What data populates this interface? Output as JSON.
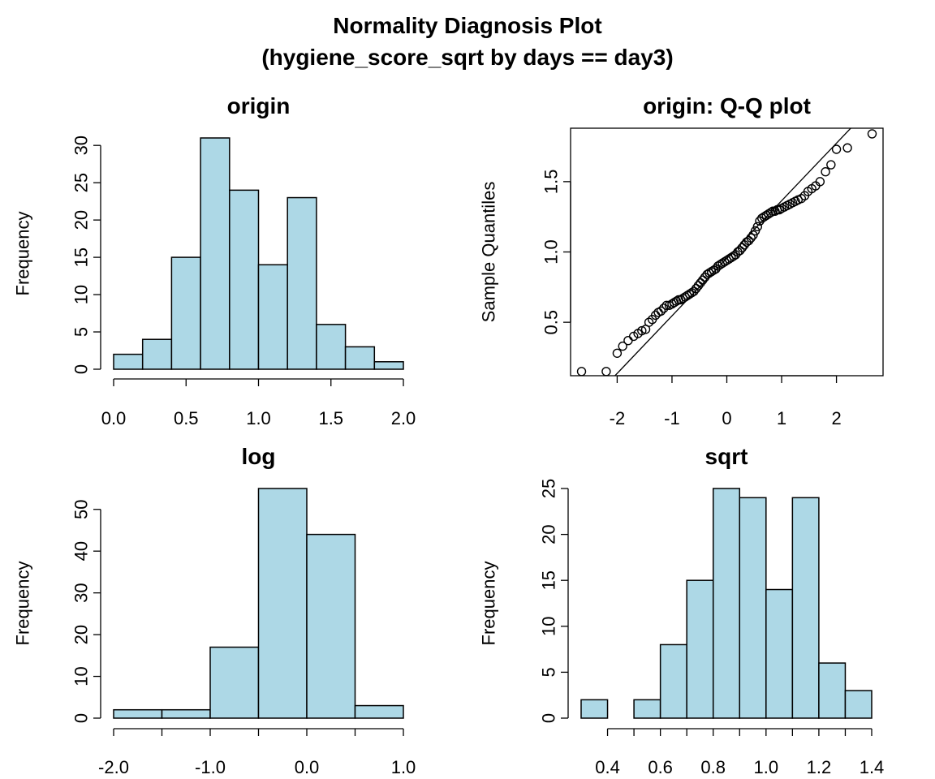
{
  "title": {
    "line1": "Normality Diagnosis Plot",
    "line2": "(hygiene_score_sqrt by days == day3)"
  },
  "chart_data": [
    {
      "type": "bar",
      "title": "origin",
      "ylabel": "Frequency",
      "xlabel": "",
      "bin_edges": [
        0.0,
        0.2,
        0.4,
        0.6,
        0.8,
        1.0,
        1.2,
        1.4,
        1.6,
        1.8,
        2.0
      ],
      "values": [
        2,
        4,
        15,
        31,
        24,
        14,
        23,
        6,
        3,
        1
      ],
      "xlim": [
        0,
        2
      ],
      "ylim": [
        0,
        31
      ],
      "xticks": [
        0,
        0.5,
        1,
        1.5,
        2
      ],
      "xtick_labels": [
        "0.0",
        "0.5",
        "1.0",
        "1.5",
        "2.0"
      ],
      "yticks": [
        0,
        5,
        10,
        15,
        20,
        25,
        30
      ],
      "ytick_labels": [
        "0",
        "5",
        "10",
        "15",
        "20",
        "25",
        "30"
      ],
      "bar_color": "#add8e6"
    },
    {
      "type": "scatter",
      "title": "origin: Q-Q plot",
      "ylabel": "Sample Quantiles",
      "xlabel": "",
      "xlim": [
        -2.85,
        2.85
      ],
      "ylim": [
        0.12,
        1.88
      ],
      "xticks": [
        -2,
        -1,
        0,
        1,
        2
      ],
      "xtick_labels": [
        "-2",
        "-1",
        "0",
        "1",
        "2"
      ],
      "yticks": [
        0.5,
        1.0,
        1.5
      ],
      "ytick_labels": [
        "0.5",
        "1.0",
        "1.5"
      ],
      "reference_line": {
        "x": [
          -2.04,
          2.26
        ],
        "y": [
          0.12,
          1.88
        ]
      },
      "points": {
        "x": [
          -2.65,
          -2.2,
          -2.0,
          -1.9,
          -1.8,
          -1.7,
          -1.62,
          -1.55,
          -1.48,
          -1.42,
          -1.36,
          -1.3,
          -1.25,
          -1.2,
          -1.15,
          -1.1,
          -1.05,
          -1.0,
          -0.96,
          -0.92,
          -0.88,
          -0.84,
          -0.8,
          -0.76,
          -0.72,
          -0.68,
          -0.64,
          -0.6,
          -0.56,
          -0.52,
          -0.48,
          -0.44,
          -0.4,
          -0.36,
          -0.32,
          -0.28,
          -0.24,
          -0.2,
          -0.16,
          -0.12,
          -0.08,
          -0.04,
          0.0,
          0.04,
          0.08,
          0.12,
          0.16,
          0.2,
          0.24,
          0.28,
          0.32,
          0.36,
          0.4,
          0.44,
          0.48,
          0.52,
          0.56,
          0.6,
          0.64,
          0.68,
          0.72,
          0.76,
          0.8,
          0.84,
          0.88,
          0.92,
          0.96,
          1.0,
          1.05,
          1.1,
          1.15,
          1.2,
          1.25,
          1.3,
          1.36,
          1.42,
          1.48,
          1.55,
          1.62,
          1.7,
          1.8,
          1.9,
          2.0,
          2.2,
          2.65
        ],
        "y": [
          0.15,
          0.15,
          0.28,
          0.33,
          0.37,
          0.4,
          0.42,
          0.44,
          0.45,
          0.5,
          0.52,
          0.55,
          0.57,
          0.58,
          0.6,
          0.62,
          0.62,
          0.63,
          0.64,
          0.65,
          0.66,
          0.66,
          0.67,
          0.68,
          0.69,
          0.7,
          0.71,
          0.72,
          0.74,
          0.76,
          0.78,
          0.8,
          0.82,
          0.84,
          0.85,
          0.86,
          0.87,
          0.88,
          0.9,
          0.91,
          0.92,
          0.93,
          0.94,
          0.95,
          0.96,
          0.97,
          0.98,
          1.0,
          1.01,
          1.03,
          1.05,
          1.07,
          1.08,
          1.1,
          1.12,
          1.15,
          1.18,
          1.22,
          1.24,
          1.25,
          1.26,
          1.27,
          1.28,
          1.29,
          1.29,
          1.3,
          1.3,
          1.31,
          1.32,
          1.33,
          1.34,
          1.35,
          1.36,
          1.37,
          1.38,
          1.4,
          1.43,
          1.45,
          1.47,
          1.5,
          1.57,
          1.62,
          1.73,
          1.74,
          1.84
        ]
      }
    },
    {
      "type": "bar",
      "title": "log",
      "ylabel": "Frequency",
      "xlabel": "",
      "bin_edges": [
        -2.0,
        -1.5,
        -1.0,
        -0.5,
        0.0,
        0.5,
        1.0
      ],
      "values": [
        2,
        2,
        17,
        55,
        44,
        3
      ],
      "xlim": [
        -2,
        1
      ],
      "ylim": [
        0,
        55
      ],
      "xticks": [
        -2,
        -1.5,
        -1,
        -0.5,
        0,
        0.5,
        1
      ],
      "xtick_labels": [
        "-2.0",
        "",
        "-1.0",
        "",
        "0.0",
        "",
        "1.0"
      ],
      "yticks": [
        0,
        10,
        20,
        30,
        40,
        50
      ],
      "ytick_labels": [
        "0",
        "10",
        "20",
        "30",
        "40",
        "50"
      ],
      "bar_color": "#add8e6"
    },
    {
      "type": "bar",
      "title": "sqrt",
      "ylabel": "Frequency",
      "xlabel": "",
      "bin_edges": [
        0.3,
        0.4,
        0.5,
        0.6,
        0.7,
        0.8,
        0.9,
        1.0,
        1.1,
        1.2,
        1.3,
        1.4
      ],
      "values": [
        2,
        0,
        2,
        8,
        15,
        25,
        24,
        14,
        24,
        6,
        3
      ],
      "xlim": [
        0.3,
        1.4
      ],
      "ylim": [
        0,
        25
      ],
      "xticks": [
        0.4,
        0.5,
        0.6,
        0.7,
        0.8,
        0.9,
        1.0,
        1.1,
        1.2,
        1.3,
        1.4
      ],
      "xtick_labels": [
        "0.4",
        "",
        "0.6",
        "",
        "0.8",
        "",
        "1.0",
        "",
        "1.2",
        "",
        "1.4"
      ],
      "yticks": [
        0,
        5,
        10,
        15,
        20,
        25
      ],
      "ytick_labels": [
        "0",
        "5",
        "10",
        "15",
        "20",
        "25"
      ],
      "bar_color": "#add8e6"
    }
  ]
}
